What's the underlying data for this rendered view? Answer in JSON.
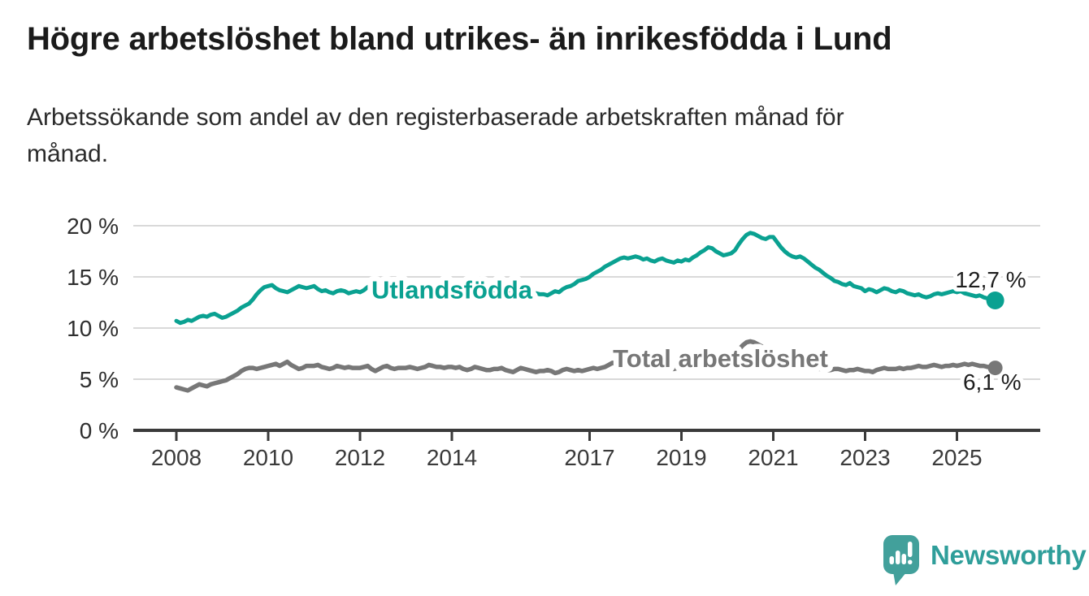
{
  "header": {
    "title": "Högre arbetslöshet bland utrikes- än inrikesfödda i Lund",
    "subtitle": "Arbetssökande som andel av den registerbaserade arbetskraften månad för månad."
  },
  "footer": {
    "brand": "Newsworthy"
  },
  "colors": {
    "series_foreign_born": "#0aa191",
    "series_total": "#777777",
    "grid": "#d9d9d9",
    "axis": "#3a3a3a",
    "annotation": "#1e1e1e",
    "logo": "#42a09b",
    "halo": "#ffffff"
  },
  "chart_data": {
    "type": "line",
    "title": "Högre arbetslöshet bland utrikes- än inrikesfödda i Lund",
    "subtitle": "Arbetssökande som andel av den registerbaserade arbetskraften månad för månad.",
    "x_axis": {
      "tick_years": [
        2008,
        2010,
        2012,
        2014,
        2017,
        2019,
        2021,
        2023,
        2025
      ],
      "range": [
        2007.05,
        2026.8
      ],
      "unit": "year"
    },
    "y_axis": {
      "tick_values": [
        0,
        5,
        10,
        15,
        20
      ],
      "tick_labels": [
        "0 %",
        "5 %",
        "10 %",
        "15 %",
        "20 %"
      ],
      "range": [
        0,
        21
      ],
      "grid": true
    },
    "sampling": {
      "x_start": 2008.0,
      "x_step": 0.0833333,
      "note": "monthly values Jan 2008 - Nov 2025"
    },
    "series": [
      {
        "name": "Utlandsfödda",
        "color": "#0aa191",
        "end_value": 12.7,
        "end_label": "12,7 %",
        "label_anchor": {
          "x": 2014.0,
          "y": 12.9
        },
        "values": [
          10.7,
          10.5,
          10.6,
          10.8,
          10.7,
          10.9,
          11.1,
          11.2,
          11.1,
          11.3,
          11.4,
          11.2,
          11.0,
          11.1,
          11.3,
          11.5,
          11.7,
          12.0,
          12.2,
          12.4,
          12.8,
          13.3,
          13.7,
          14.0,
          14.1,
          14.2,
          13.9,
          13.7,
          13.6,
          13.5,
          13.7,
          13.9,
          14.1,
          14.0,
          13.9,
          14.0,
          14.1,
          13.8,
          13.6,
          13.7,
          13.5,
          13.4,
          13.6,
          13.7,
          13.6,
          13.4,
          13.5,
          13.6,
          13.5,
          13.7,
          14.0,
          14.2,
          14.3,
          14.1,
          13.7,
          13.6,
          13.8,
          14.0,
          13.9,
          13.8,
          13.9,
          14.0,
          13.8,
          13.7,
          13.9,
          14.1,
          14.2,
          14.0,
          13.8,
          13.9,
          13.7,
          13.8,
          13.9,
          14.1,
          14.0,
          13.9,
          13.8,
          13.7,
          13.9,
          14.0,
          13.8,
          13.7,
          13.6,
          13.7,
          13.8,
          13.9,
          13.7,
          13.6,
          13.5,
          13.4,
          13.6,
          13.5,
          13.4,
          13.5,
          13.4,
          13.3,
          13.3,
          13.2,
          13.4,
          13.6,
          13.5,
          13.8,
          14.0,
          14.1,
          14.3,
          14.6,
          14.7,
          14.8,
          15.0,
          15.3,
          15.5,
          15.7,
          16.0,
          16.2,
          16.4,
          16.6,
          16.8,
          16.9,
          16.8,
          16.9,
          17.0,
          16.9,
          16.7,
          16.8,
          16.6,
          16.5,
          16.7,
          16.8,
          16.6,
          16.5,
          16.4,
          16.6,
          16.5,
          16.7,
          16.6,
          16.9,
          17.1,
          17.4,
          17.6,
          17.9,
          17.8,
          17.5,
          17.3,
          17.1,
          17.2,
          17.3,
          17.6,
          18.2,
          18.7,
          19.1,
          19.3,
          19.2,
          19.0,
          18.8,
          18.7,
          18.9,
          18.9,
          18.4,
          17.9,
          17.5,
          17.2,
          17.0,
          16.9,
          17.0,
          16.8,
          16.5,
          16.2,
          15.9,
          15.7,
          15.4,
          15.1,
          14.9,
          14.6,
          14.5,
          14.3,
          14.2,
          14.4,
          14.1,
          14.0,
          13.9,
          13.6,
          13.8,
          13.7,
          13.5,
          13.7,
          13.9,
          13.8,
          13.6,
          13.5,
          13.7,
          13.6,
          13.4,
          13.3,
          13.2,
          13.3,
          13.1,
          13.0,
          13.1,
          13.3,
          13.4,
          13.3,
          13.4,
          13.5,
          13.6,
          13.5,
          13.6,
          13.4,
          13.3,
          13.2,
          13.1,
          13.2,
          13.0,
          12.9,
          12.8,
          12.7
        ]
      },
      {
        "name": "Total arbetslöshet",
        "color": "#777777",
        "end_value": 6.1,
        "end_label": "6,1 %",
        "label_anchor": {
          "x": 2019.85,
          "y": 6.2
        },
        "values": [
          4.2,
          4.1,
          4.0,
          3.9,
          4.1,
          4.3,
          4.5,
          4.4,
          4.3,
          4.5,
          4.6,
          4.7,
          4.8,
          4.9,
          5.1,
          5.3,
          5.5,
          5.8,
          6.0,
          6.1,
          6.1,
          6.0,
          6.1,
          6.2,
          6.3,
          6.4,
          6.5,
          6.3,
          6.5,
          6.7,
          6.4,
          6.2,
          6.0,
          6.1,
          6.3,
          6.3,
          6.3,
          6.4,
          6.2,
          6.1,
          6.0,
          6.1,
          6.3,
          6.2,
          6.1,
          6.2,
          6.1,
          6.1,
          6.1,
          6.2,
          6.3,
          6.0,
          5.8,
          6.0,
          6.2,
          6.3,
          6.1,
          6.0,
          6.1,
          6.1,
          6.1,
          6.2,
          6.1,
          6.0,
          6.1,
          6.2,
          6.4,
          6.3,
          6.2,
          6.2,
          6.1,
          6.2,
          6.2,
          6.1,
          6.2,
          6.0,
          5.9,
          6.0,
          6.2,
          6.1,
          6.0,
          5.9,
          5.9,
          6.0,
          6.0,
          6.1,
          5.9,
          5.8,
          5.7,
          5.9,
          6.1,
          6.0,
          5.9,
          5.8,
          5.7,
          5.8,
          5.8,
          5.9,
          5.8,
          5.6,
          5.7,
          5.9,
          6.0,
          5.9,
          5.8,
          5.9,
          5.8,
          5.9,
          6.0,
          6.1,
          6.0,
          6.1,
          6.2,
          6.4,
          6.6,
          6.5,
          6.4,
          6.3,
          6.2,
          6.3,
          6.3,
          6.2,
          6.1,
          6.0,
          6.1,
          6.2,
          6.3,
          6.2,
          6.1,
          6.0,
          6.0,
          6.1,
          6.1,
          6.2,
          6.1,
          6.2,
          6.3,
          6.4,
          6.5,
          6.4,
          6.3,
          6.4,
          6.4,
          6.5,
          6.6,
          6.8,
          7.2,
          7.9,
          8.3,
          8.6,
          8.7,
          8.6,
          8.4,
          8.2,
          8.0,
          7.9,
          7.8,
          7.6,
          7.3,
          7.1,
          6.9,
          6.7,
          6.6,
          6.5,
          6.4,
          6.3,
          6.2,
          6.1,
          6.0,
          6.0,
          5.9,
          5.9,
          6.0,
          6.0,
          5.9,
          5.8,
          5.9,
          5.9,
          6.0,
          5.9,
          5.8,
          5.8,
          5.7,
          5.9,
          6.0,
          6.1,
          6.0,
          6.0,
          6.0,
          6.1,
          6.0,
          6.1,
          6.1,
          6.2,
          6.3,
          6.2,
          6.2,
          6.3,
          6.4,
          6.3,
          6.2,
          6.3,
          6.3,
          6.4,
          6.3,
          6.4,
          6.5,
          6.4,
          6.5,
          6.4,
          6.3,
          6.3,
          6.2,
          6.2,
          6.1
        ]
      }
    ]
  }
}
